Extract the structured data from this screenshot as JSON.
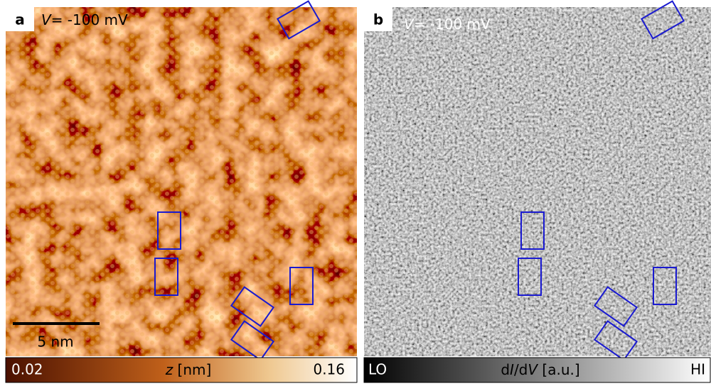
{
  "panels": [
    {
      "letter": "a",
      "voltage": {
        "symbol": "V",
        "text": "= -100 mV"
      },
      "scale_bar": "5 nm",
      "colorbar": {
        "min": 0.02,
        "label_parts": [
          "z",
          " [nm]"
        ],
        "max": 0.16
      }
    },
    {
      "letter": "b",
      "voltage": {
        "symbol": "V",
        "text": "= -100 mV"
      },
      "colorbar": {
        "min": "LO",
        "label_parts": [
          "d",
          "I",
          "/d",
          "V",
          " [a.u.]"
        ],
        "max": "HI"
      }
    }
  ]
}
